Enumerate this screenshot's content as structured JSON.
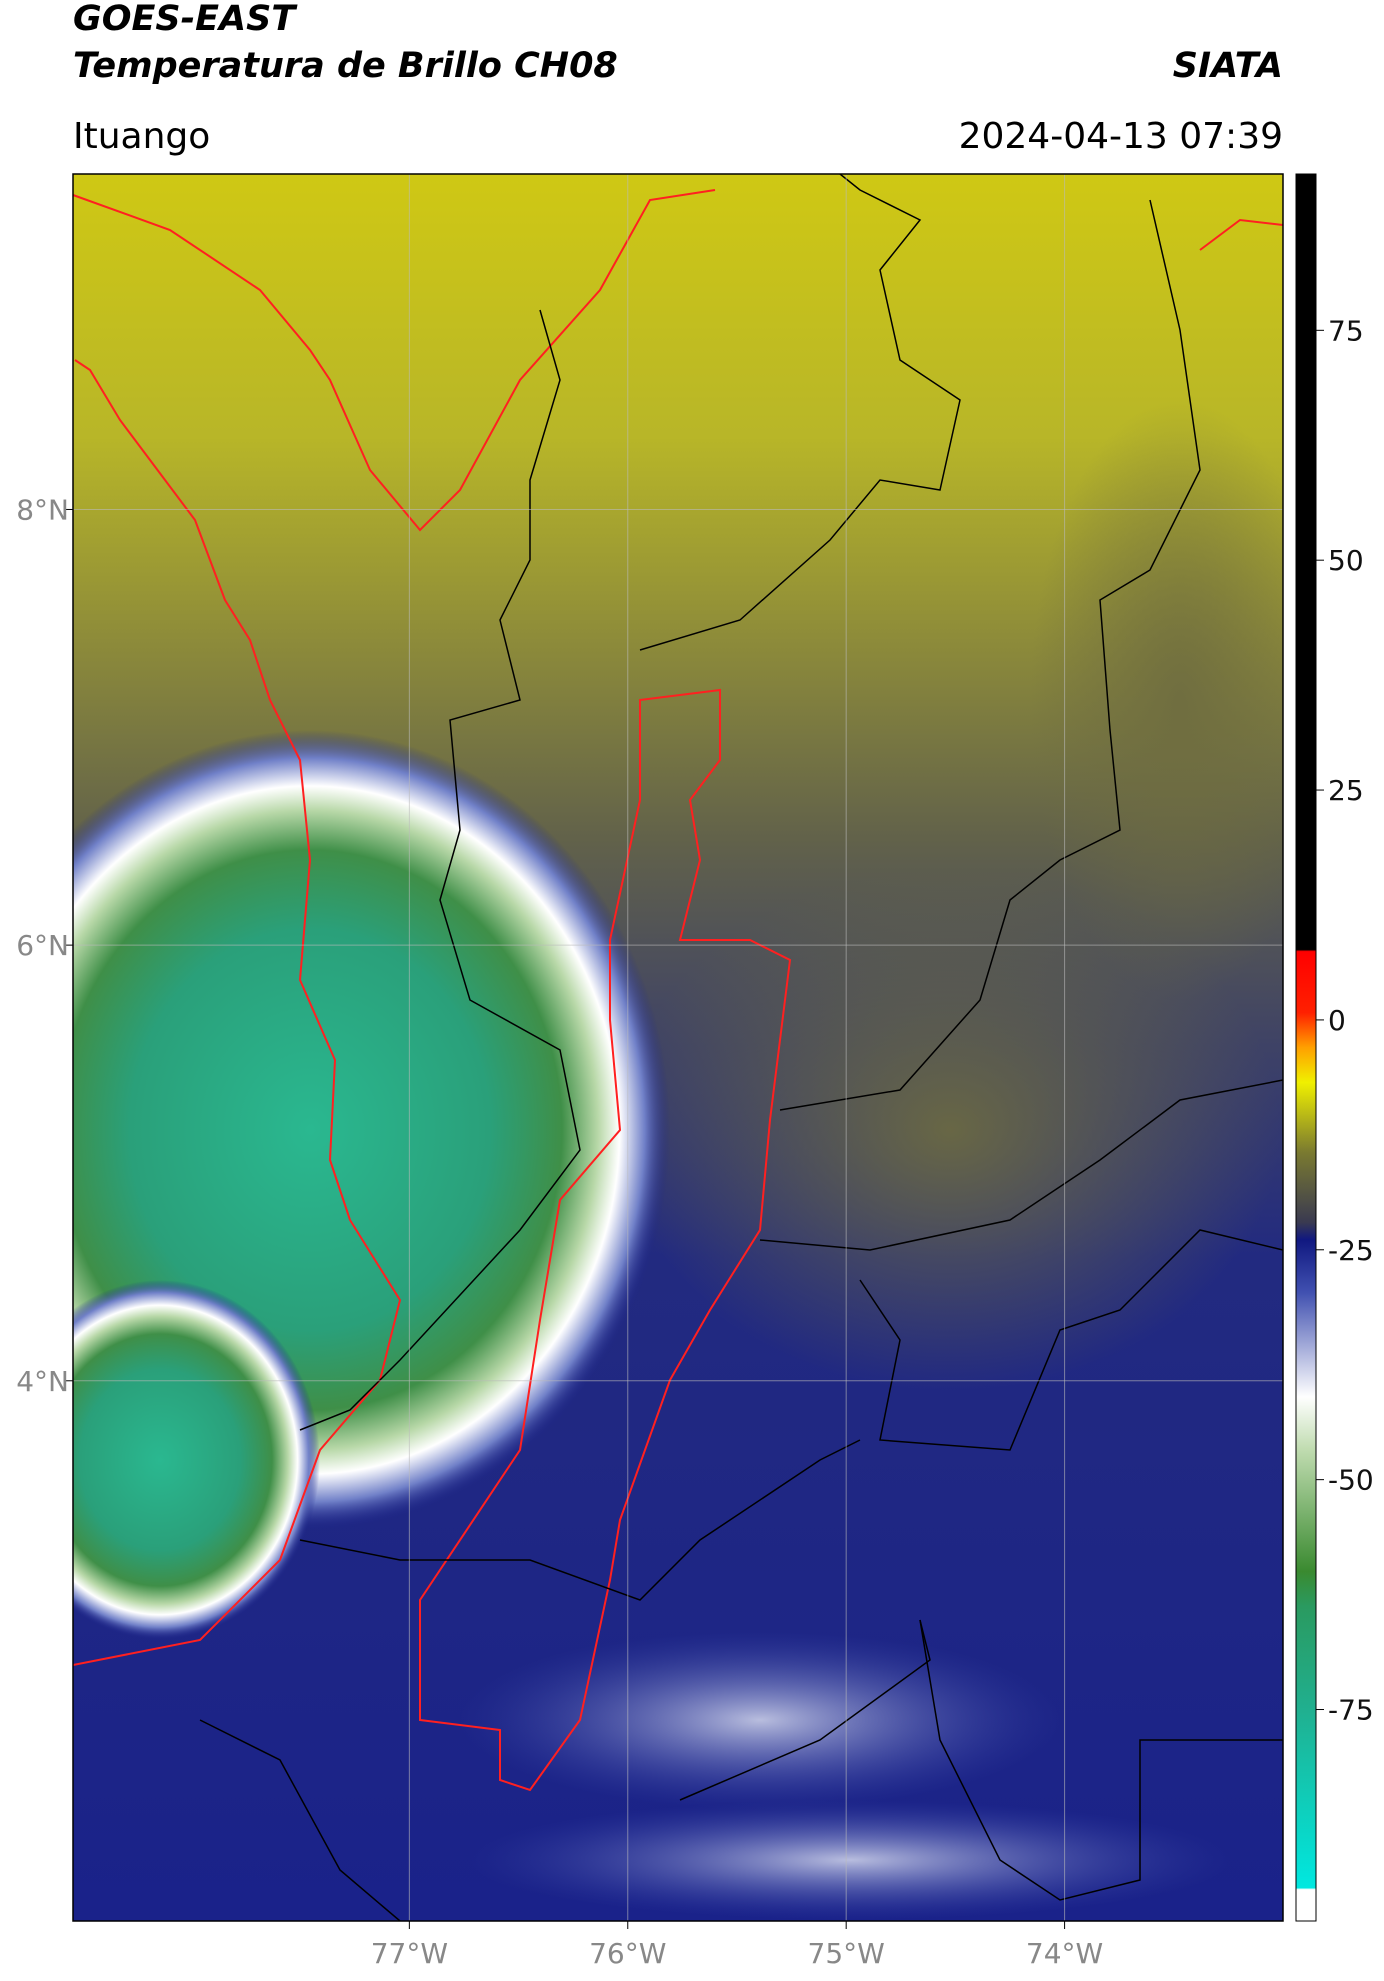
{
  "chart_data": {
    "type": "map",
    "title": "GOES-EAST",
    "subtitle": "Temperatura de Brillo CH08",
    "source": "SIATA",
    "location": "Ituango",
    "timestamp": "2024-04-13 07:39",
    "xlim": [
      -78.54,
      -73.0
    ],
    "xticks": [
      {
        "value": -77,
        "label": "77°W"
      },
      {
        "value": -76,
        "label": "76°W"
      },
      {
        "value": -75,
        "label": "75°W"
      },
      {
        "value": -74,
        "label": "74°W"
      }
    ],
    "ylim": [
      1.52,
      9.54
    ],
    "yticks": [
      {
        "value": 8,
        "label": "8°N"
      },
      {
        "value": 6,
        "label": "6°N"
      },
      {
        "value": 4,
        "label": "4°N"
      }
    ],
    "colorbar": {
      "lim": [
        -98,
        92
      ],
      "ticks": [
        -75,
        -50,
        -25,
        0,
        25,
        50,
        75
      ]
    },
    "grid": true
  }
}
